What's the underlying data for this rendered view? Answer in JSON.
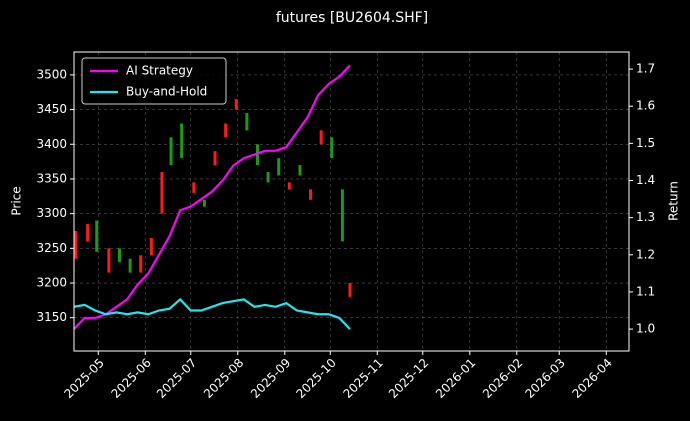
{
  "chart_data": {
    "type": "candlestick-lines",
    "title": "futures [BU2604.SHF]",
    "ylabel": "Price",
    "y2label": "Return",
    "xlim": [
      "2025-04-15",
      "2026-04-16"
    ],
    "xticks": [
      {
        "value": "2025-05-01",
        "label": "2025-05"
      },
      {
        "value": "2025-06-01",
        "label": "2025-06"
      },
      {
        "value": "2025-07-01",
        "label": "2025-07"
      },
      {
        "value": "2025-08-01",
        "label": "2025-08"
      },
      {
        "value": "2025-09-01",
        "label": "2025-09"
      },
      {
        "value": "2025-10-01",
        "label": "2025-10"
      },
      {
        "value": "2025-11-01",
        "label": "2025-11"
      },
      {
        "value": "2025-12-01",
        "label": "2025-12"
      },
      {
        "value": "2026-01-01",
        "label": "2026-01"
      },
      {
        "value": "2026-02-01",
        "label": "2026-02"
      },
      {
        "value": "2026-03-01",
        "label": "2026-03"
      },
      {
        "value": "2026-04-01",
        "label": "2026-04"
      }
    ],
    "ylim": [
      3102,
      3533
    ],
    "yticks": [
      3150,
      3200,
      3250,
      3300,
      3350,
      3400,
      3450,
      3500
    ],
    "y2lim": [
      0.941,
      1.746
    ],
    "y2ticks": [
      {
        "value": 1.0,
        "label": "1.0"
      },
      1.1,
      1.2,
      1.3,
      1.4,
      1.5,
      1.6,
      1.7
    ],
    "grid": true,
    "legend": "upper left",
    "up_color": "#ff1a1a",
    "down_color": "#1a9a1a",
    "candles": {
      "x": [
        "2025-04-16",
        "2025-04-24",
        "2025-04-30",
        "2025-05-08",
        "2025-05-15",
        "2025-05-22",
        "2025-05-29",
        "2025-06-05",
        "2025-06-12",
        "2025-06-18",
        "2025-06-25",
        "2025-07-03",
        "2025-07-10",
        "2025-07-17",
        "2025-07-24",
        "2025-07-31",
        "2025-08-07",
        "2025-08-14",
        "2025-08-21",
        "2025-08-28",
        "2025-09-04",
        "2025-09-11",
        "2025-09-18",
        "2025-09-25",
        "2025-10-02",
        "2025-10-09",
        "2025-10-14"
      ],
      "open": [
        3235,
        3260,
        3290,
        3215,
        3250,
        3235,
        3215,
        3240,
        3300,
        3410,
        3430,
        3330,
        3320,
        3370,
        3410,
        3450,
        3445,
        3400,
        3360,
        3380,
        3335,
        3370,
        3320,
        3400,
        3410,
        3335,
        3180
      ],
      "close": [
        3275,
        3285,
        3245,
        3250,
        3230,
        3215,
        3240,
        3265,
        3360,
        3370,
        3380,
        3345,
        3310,
        3390,
        3430,
        3465,
        3420,
        3370,
        3345,
        3355,
        3345,
        3355,
        3335,
        3420,
        3380,
        3260,
        3200
      ]
    },
    "series": [
      {
        "name": "AI Strategy",
        "color": "#ff00ff",
        "axis": "y2",
        "x": [
          "2025-04-15",
          "2025-04-22",
          "2025-04-29",
          "2025-05-06",
          "2025-05-13",
          "2025-05-20",
          "2025-05-27",
          "2025-06-03",
          "2025-06-10",
          "2025-06-17",
          "2025-06-24",
          "2025-07-01",
          "2025-07-08",
          "2025-07-15",
          "2025-07-22",
          "2025-07-29",
          "2025-08-05",
          "2025-08-12",
          "2025-08-19",
          "2025-08-26",
          "2025-09-02",
          "2025-09-09",
          "2025-09-16",
          "2025-09-23",
          "2025-09-30",
          "2025-10-07",
          "2025-10-14"
        ],
        "values": [
          1.0,
          1.03,
          1.03,
          1.04,
          1.06,
          1.08,
          1.12,
          1.15,
          1.2,
          1.25,
          1.32,
          1.33,
          1.35,
          1.37,
          1.4,
          1.44,
          1.46,
          1.47,
          1.48,
          1.48,
          1.49,
          1.53,
          1.57,
          1.63,
          1.66,
          1.68,
          1.71
        ]
      },
      {
        "name": "Buy-and-Hold",
        "color": "#22e5f0",
        "axis": "y2",
        "x": [
          "2025-04-15",
          "2025-04-22",
          "2025-04-29",
          "2025-05-06",
          "2025-05-13",
          "2025-05-20",
          "2025-05-27",
          "2025-06-03",
          "2025-06-10",
          "2025-06-17",
          "2025-06-24",
          "2025-07-01",
          "2025-07-08",
          "2025-07-15",
          "2025-07-22",
          "2025-07-29",
          "2025-08-05",
          "2025-08-12",
          "2025-08-19",
          "2025-08-26",
          "2025-09-02",
          "2025-09-09",
          "2025-09-16",
          "2025-09-23",
          "2025-09-30",
          "2025-10-07",
          "2025-10-14"
        ],
        "values": [
          1.06,
          1.065,
          1.05,
          1.04,
          1.045,
          1.04,
          1.045,
          1.04,
          1.05,
          1.055,
          1.08,
          1.05,
          1.05,
          1.06,
          1.07,
          1.075,
          1.08,
          1.06,
          1.065,
          1.06,
          1.07,
          1.05,
          1.045,
          1.04,
          1.04,
          1.03,
          1.0
        ]
      }
    ]
  }
}
